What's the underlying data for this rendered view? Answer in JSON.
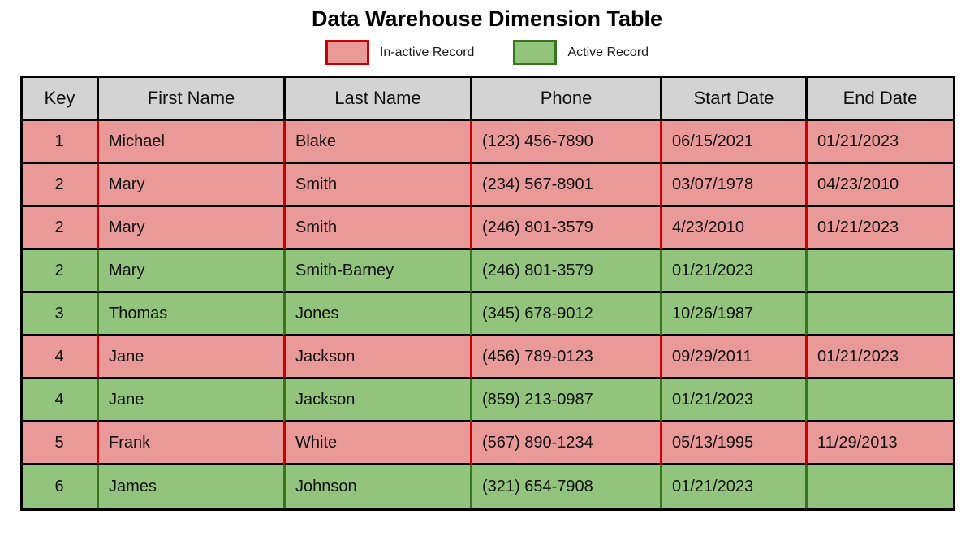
{
  "title": "Data Warehouse Dimension Table",
  "legend": {
    "inactive": {
      "label": "In-active Record"
    },
    "active": {
      "label": "Active Record"
    }
  },
  "colors": {
    "inactive_fill": "#ea9999",
    "inactive_border": "#cc0000",
    "active_fill": "#93c47d",
    "active_border": "#38761d",
    "header_fill": "#d3d3d3",
    "grid": "#000000"
  },
  "table": {
    "columns": [
      "Key",
      "First Name",
      "Last Name",
      "Phone",
      "Start Date",
      "End Date"
    ],
    "rows": [
      {
        "status": "inactive",
        "cells": [
          "1",
          "Michael",
          "Blake",
          "(123) 456-7890",
          "06/15/2021",
          "01/21/2023"
        ]
      },
      {
        "status": "inactive",
        "cells": [
          "2",
          "Mary",
          "Smith",
          "(234) 567-8901",
          "03/07/1978",
          "04/23/2010"
        ]
      },
      {
        "status": "inactive",
        "cells": [
          "2",
          "Mary",
          "Smith",
          "(246) 801-3579",
          "4/23/2010",
          "01/21/2023"
        ]
      },
      {
        "status": "active",
        "cells": [
          "2",
          "Mary",
          "Smith-Barney",
          "(246) 801-3579",
          "01/21/2023",
          ""
        ]
      },
      {
        "status": "active",
        "cells": [
          "3",
          "Thomas",
          "Jones",
          "(345) 678-9012",
          "10/26/1987",
          ""
        ]
      },
      {
        "status": "inactive",
        "cells": [
          "4",
          "Jane",
          "Jackson",
          "(456) 789-0123",
          "09/29/2011",
          "01/21/2023"
        ]
      },
      {
        "status": "active",
        "cells": [
          "4",
          "Jane",
          "Jackson",
          "(859) 213-0987",
          "01/21/2023",
          ""
        ]
      },
      {
        "status": "inactive",
        "cells": [
          "5",
          "Frank",
          "White",
          "(567) 890-1234",
          "05/13/1995",
          "11/29/2013"
        ]
      },
      {
        "status": "active",
        "cells": [
          "6",
          "James",
          "Johnson",
          "(321) 654-7908",
          "01/21/2023",
          ""
        ]
      }
    ]
  },
  "chart_data": {
    "type": "table",
    "title": "Data Warehouse Dimension Table",
    "legend": [
      "In-active Record",
      "Active Record"
    ],
    "legend_position": "top",
    "columns": [
      "Key",
      "First Name",
      "Last Name",
      "Phone",
      "Start Date",
      "End Date"
    ],
    "rows": [
      [
        "1",
        "Michael",
        "Blake",
        "(123) 456-7890",
        "06/15/2021",
        "01/21/2023"
      ],
      [
        "2",
        "Mary",
        "Smith",
        "(234) 567-8901",
        "03/07/1978",
        "04/23/2010"
      ],
      [
        "2",
        "Mary",
        "Smith",
        "(246) 801-3579",
        "4/23/2010",
        "01/21/2023"
      ],
      [
        "2",
        "Mary",
        "Smith-Barney",
        "(246) 801-3579",
        "01/21/2023",
        ""
      ],
      [
        "3",
        "Thomas",
        "Jones",
        "(345) 678-9012",
        "10/26/1987",
        ""
      ],
      [
        "4",
        "Jane",
        "Jackson",
        "(456) 789-0123",
        "09/29/2011",
        "01/21/2023"
      ],
      [
        "4",
        "Jane",
        "Jackson",
        "(859) 213-0987",
        "01/21/2023",
        ""
      ],
      [
        "5",
        "Frank",
        "White",
        "(567) 890-1234",
        "05/13/1995",
        "11/29/2013"
      ],
      [
        "6",
        "James",
        "Johnson",
        "(321) 654-7908",
        "01/21/2023",
        ""
      ]
    ],
    "row_status": [
      "inactive",
      "inactive",
      "inactive",
      "active",
      "active",
      "inactive",
      "active",
      "inactive",
      "active"
    ]
  }
}
